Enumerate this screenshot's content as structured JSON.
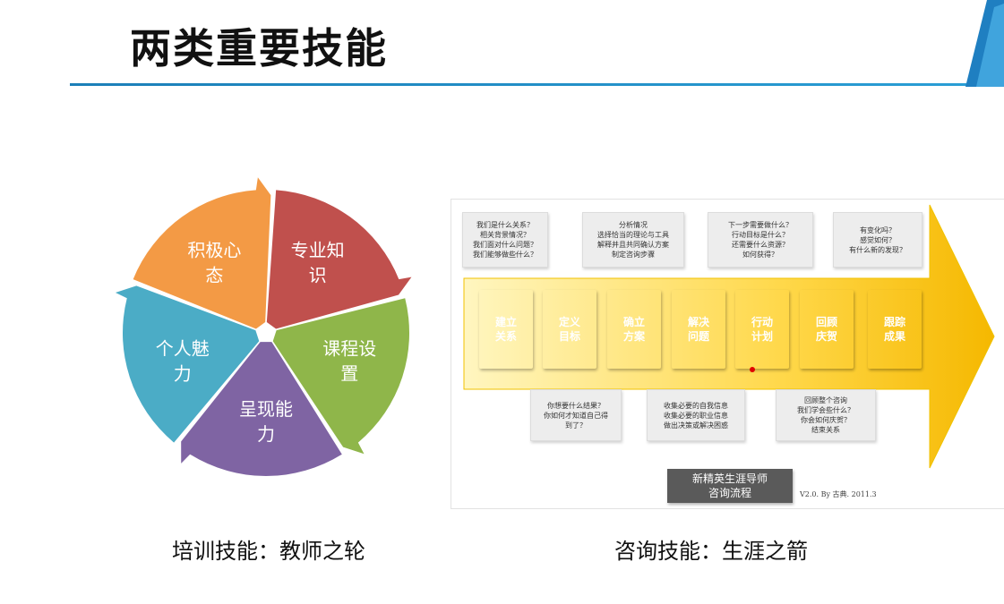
{
  "slide": {
    "title": "两类重要技能",
    "caption_left": "培训技能：教师之轮",
    "caption_right": "咨询技能：生涯之箭"
  },
  "wheel": {
    "segments": [
      {
        "line1": "专业知",
        "line2": "识",
        "color": "#c0504d"
      },
      {
        "line1": "课程设",
        "line2": "置",
        "color": "#8fb64a"
      },
      {
        "line1": "呈现能",
        "line2": "力",
        "color": "#7f64a3"
      },
      {
        "line1": "个人魅",
        "line2": "力",
        "color": "#4bacc6"
      },
      {
        "line1": "积极心",
        "line2": "态",
        "color": "#f39a45"
      }
    ]
  },
  "arrow": {
    "top_questions": [
      "我们是什么关系？\n相关背景情况？\n我们面对什么问题？\n我们能够做些什么？",
      "分析情况\n选择恰当的理论与工具\n解释并且共同确认方案\n制定咨询步骤",
      "下一步需要做什么？\n行动目标是什么？\n还需要什么资源？\n如何获得？",
      "有变化吗？\n感觉如何？\n有什么新的发现？"
    ],
    "steps": [
      {
        "label": "建立\n关系",
        "color": "#4f81bd"
      },
      {
        "label": "定义\n目标",
        "color": "#a93a36"
      },
      {
        "label": "确立\n方案",
        "color": "#5fb6a4"
      },
      {
        "label": "解决\n问题",
        "color": "#8a56b0"
      },
      {
        "label": "行动\n计划",
        "color": "#5c8c3a"
      },
      {
        "label": "回顾\n庆贺",
        "color": "#4f7fbf"
      },
      {
        "label": "跟踪\n成果",
        "color": "#a83834"
      }
    ],
    "bottom_questions": [
      "你想要什么结果？\n你如何才知道自己得\n到了？",
      "收集必要的自我信息\n收集必要的职业信息\n做出决策或解决困惑",
      "回顾整个咨询\n我们学会些什么？\n你会如何庆贺？\n结束关系"
    ],
    "badge": "新精英生涯导师\n咨询流程",
    "version": "V2.0. By 古典. 2011.3"
  }
}
